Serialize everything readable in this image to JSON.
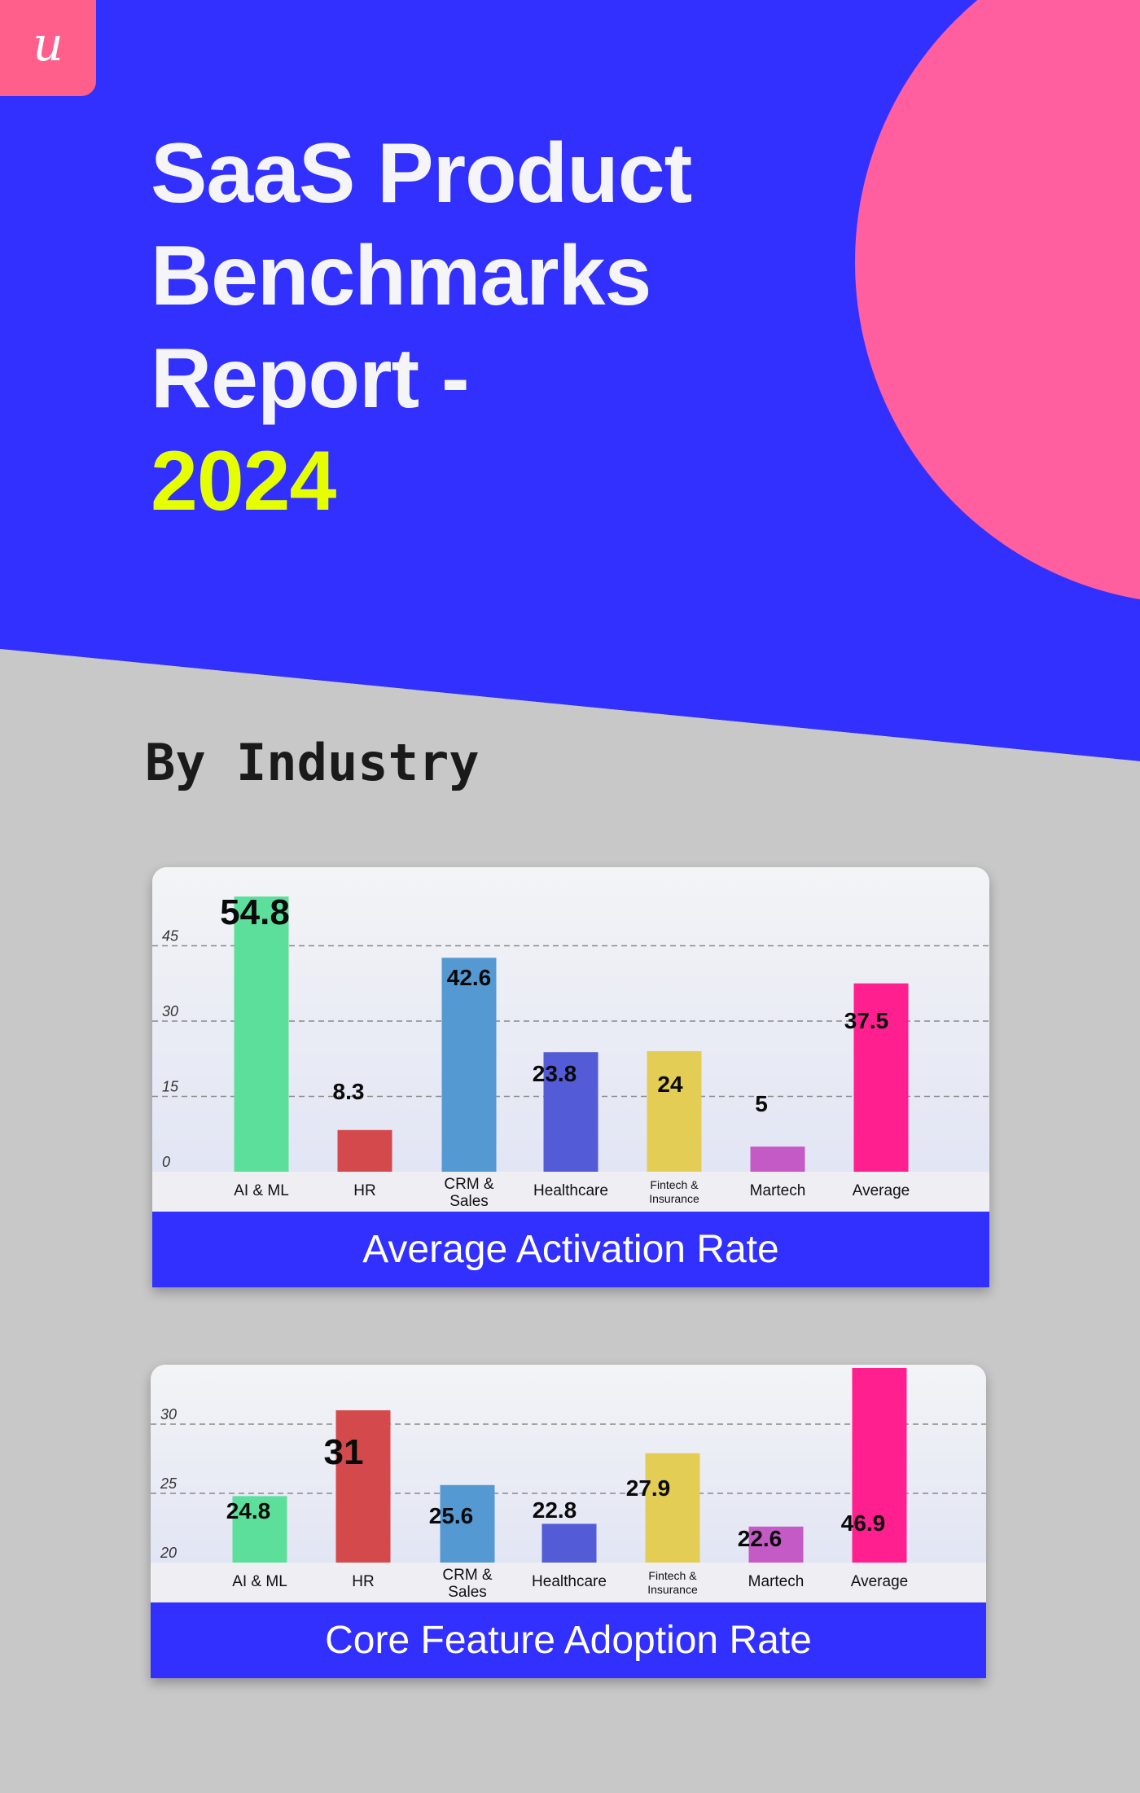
{
  "header": {
    "logo_letter": "u",
    "title_lines": [
      "SaaS Product",
      "Benchmarks",
      "Report -"
    ],
    "title_year": "2024",
    "colors": {
      "blue": "#3230ff",
      "pink": "#ff5f9e",
      "year": "#e6ff00"
    }
  },
  "section": {
    "subtitle": "By Industry"
  },
  "chart_data": [
    {
      "type": "bar",
      "title": "Average Activation Rate",
      "categories": [
        "AI & ML",
        "HR",
        "CRM & Sales",
        "Healthcare",
        "Fintech & Insurance",
        "Martech",
        "Average"
      ],
      "values": [
        54.8,
        8.3,
        42.6,
        23.8,
        24,
        5,
        37.5
      ],
      "value_labels": [
        "54.8",
        "8.3",
        "42.6",
        "23.8",
        "24",
        "5",
        "37.5"
      ],
      "colors": [
        "#5ddf9c",
        "#d44a4c",
        "#5599d3",
        "#535cd6",
        "#e3cd55",
        "#c45ac6",
        "#ff1f8f"
      ],
      "yticks": [
        "45",
        "30",
        "15",
        "0"
      ],
      "ylim": [
        0,
        54.8
      ],
      "grid": true,
      "legend": "none"
    },
    {
      "type": "bar",
      "title": "Core Feature Adoption Rate",
      "categories": [
        "AI & ML",
        "HR",
        "CRM & Sales",
        "Healthcare",
        "Fintech & Insurance",
        "Martech",
        "Average"
      ],
      "values": [
        24.8,
        31,
        25.6,
        22.8,
        27.9,
        22.6,
        46.9
      ],
      "value_labels": [
        "24.8",
        "31",
        "25.6",
        "22.8",
        "27.9",
        "22.6",
        "46.9"
      ],
      "colors": [
        "#5ddf9c",
        "#d44a4c",
        "#5599d3",
        "#535cd6",
        "#e3cd55",
        "#c45ac6",
        "#ff1f8f"
      ],
      "yticks": [
        "30",
        "25",
        "20"
      ],
      "ylim": [
        20,
        31
      ],
      "grid": true,
      "legend": "none"
    }
  ]
}
